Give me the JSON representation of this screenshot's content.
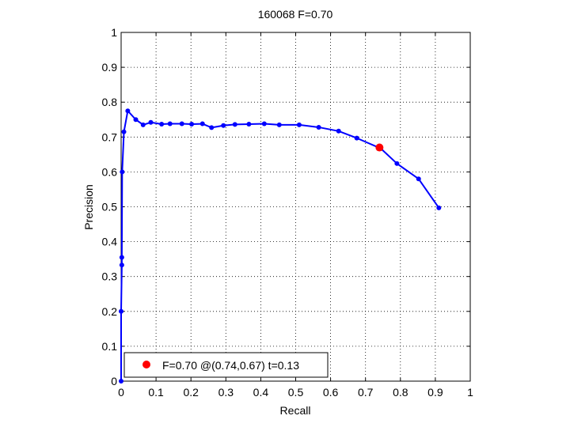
{
  "chart_data": {
    "type": "line",
    "title": "160068 F=0.70",
    "xlabel": "Recall",
    "ylabel": "Precision",
    "xlim": [
      0,
      1
    ],
    "ylim": [
      0,
      1
    ],
    "xticks": [
      "0",
      "0.1",
      "0.2",
      "0.3",
      "0.4",
      "0.5",
      "0.6",
      "0.7",
      "0.8",
      "0.9",
      "1"
    ],
    "yticks": [
      "0",
      "0.1",
      "0.2",
      "0.3",
      "0.4",
      "0.5",
      "0.6",
      "0.7",
      "0.8",
      "0.9",
      "1"
    ],
    "grid": true,
    "grid_style": "dotted",
    "series": [
      {
        "color": "#0000ff",
        "marker": "dot",
        "x": [
          0.0,
          0.0,
          0.002,
          0.002,
          0.003,
          0.008,
          0.019,
          0.042,
          0.063,
          0.085,
          0.116,
          0.14,
          0.174,
          0.202,
          0.233,
          0.259,
          0.293,
          0.326,
          0.366,
          0.41,
          0.453,
          0.51,
          0.566,
          0.623,
          0.675,
          0.744,
          0.79,
          0.852,
          0.91
        ],
        "y": [
          0.0,
          0.2,
          0.333,
          0.355,
          0.6,
          0.715,
          0.775,
          0.75,
          0.735,
          0.742,
          0.737,
          0.738,
          0.738,
          0.737,
          0.738,
          0.727,
          0.733,
          0.736,
          0.737,
          0.738,
          0.735,
          0.735,
          0.728,
          0.717,
          0.697,
          0.667,
          0.624,
          0.58,
          0.497
        ]
      }
    ],
    "highlight": {
      "x": 0.74,
      "y": 0.67,
      "color": "#ff0000"
    },
    "legend": {
      "position": "bottom-left",
      "text": "F=0.70 @(0.74,0.67) t=0.13"
    }
  }
}
